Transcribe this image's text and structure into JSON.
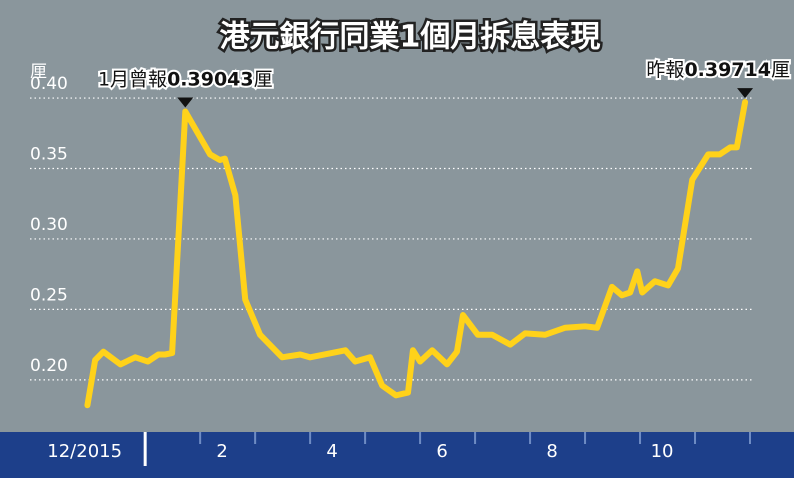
{
  "chart_data": {
    "type": "line",
    "title": "港元銀行同業1個月拆息表現",
    "y_unit": "厘",
    "color": "#ffd21a",
    "x": [
      -0.05,
      0.09,
      0.24,
      0.55,
      0.82,
      1.05,
      1.24,
      1.36,
      1.49,
      1.73,
      2.18,
      2.36,
      2.45,
      2.64,
      2.82,
      3.09,
      3.49,
      3.82,
      4.0,
      4.64,
      4.82,
      5.09,
      5.31,
      5.56,
      5.78,
      5.87,
      6.0,
      6.22,
      6.49,
      6.67,
      6.78,
      7.05,
      7.31,
      7.64,
      7.91,
      8.27,
      8.64,
      9.0,
      9.22,
      9.49,
      9.67,
      9.82,
      9.95,
      10.04,
      10.27,
      10.51,
      10.69,
      10.95,
      11.24,
      11.45,
      11.64,
      11.76,
      11.91
    ],
    "values": [
      0.182,
      0.214,
      0.22,
      0.211,
      0.216,
      0.213,
      0.218,
      0.218,
      0.219,
      0.39043,
      0.36,
      0.356,
      0.357,
      0.331,
      0.257,
      0.232,
      0.216,
      0.218,
      0.216,
      0.221,
      0.213,
      0.216,
      0.196,
      0.189,
      0.191,
      0.221,
      0.213,
      0.221,
      0.211,
      0.22,
      0.246,
      0.232,
      0.232,
      0.225,
      0.233,
      0.232,
      0.237,
      0.238,
      0.237,
      0.266,
      0.26,
      0.262,
      0.277,
      0.262,
      0.27,
      0.267,
      0.279,
      0.342,
      0.36,
      0.36,
      0.365,
      0.365,
      0.39714
    ],
    "xlim": [
      -1.64,
      12.8
    ],
    "ylim": [
      0.163,
      0.427
    ],
    "yticks": [
      {
        "value": 0.2,
        "label": "0.20"
      },
      0.25,
      {
        "value": 0.3,
        "label": "0.30"
      },
      0.35,
      {
        "value": 0.4,
        "label": "0.40"
      }
    ],
    "xticks": [
      {
        "value": -0.1,
        "label": "12/2015"
      },
      {
        "value": 2.4,
        "label": "2"
      },
      {
        "value": 4.4,
        "label": "4"
      },
      {
        "value": 6.4,
        "label": "6"
      },
      {
        "value": 8.4,
        "label": "8"
      },
      {
        "value": 10.4,
        "label": "10"
      }
    ],
    "xminorticks": [
      1,
      2,
      3,
      4,
      5,
      6,
      7,
      8,
      9,
      10,
      11,
      12
    ],
    "grid": true,
    "annotations": [
      {
        "prefix": "1月曾報",
        "value": 0.39043,
        "suffix": "厘",
        "x": 1.73
      },
      {
        "prefix": "昨報",
        "value": 0.39714,
        "suffix": "厘",
        "x": 11.91
      }
    ]
  }
}
